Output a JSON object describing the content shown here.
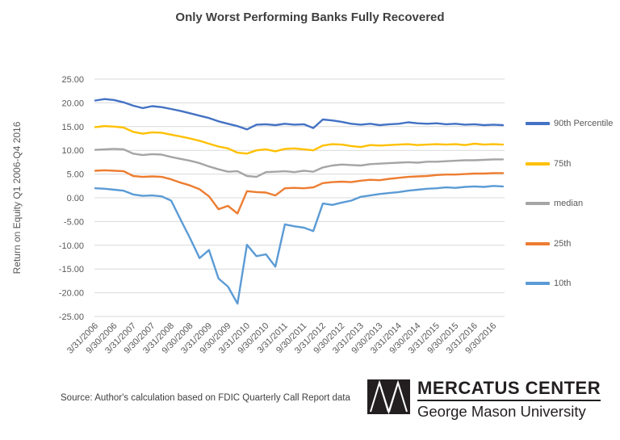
{
  "title": "Only Worst Performing Banks Fully Recovered",
  "source_note": "Source: Author's calculation based on FDIC Quarterly Call Report data",
  "logo": {
    "org": "MERCATUS CENTER",
    "university": "George Mason University"
  },
  "colors": {
    "p90": "#4472C4",
    "p75": "#FFC000",
    "median": "#A5A5A5",
    "p25": "#ED7D31",
    "p10": "#5B9BD5",
    "gridline": "#D9D9D9",
    "tick_text": "#595959",
    "title_text": "#3f3f3f",
    "logo_black": "#231f20"
  },
  "chart_data": {
    "type": "line",
    "title": "Only Worst Performing Banks Fully Recovered",
    "ylabel": "Return on Equity Q1 2006-Q4 2016",
    "xlabel": "",
    "ylim": [
      -25,
      25
    ],
    "y_ticks": [
      25,
      20,
      15,
      10,
      5,
      0,
      -5,
      -10,
      -15,
      -20,
      -25
    ],
    "y_tick_labels": [
      "25.00",
      "20.00",
      "15.00",
      "10.00",
      "5.00",
      "0.00",
      "-5.00",
      "-10.00",
      "-15.00",
      "-20.00",
      "-25.00"
    ],
    "grid": "horizontal",
    "legend_position": "right",
    "x_tick_every": 2,
    "x": [
      "3/31/2006",
      "6/30/2006",
      "9/30/2006",
      "12/31/2006",
      "3/31/2007",
      "6/30/2007",
      "9/30/2007",
      "12/31/2007",
      "3/31/2008",
      "6/30/2008",
      "9/30/2008",
      "12/31/2008",
      "3/31/2009",
      "6/30/2009",
      "9/30/2009",
      "12/31/2009",
      "3/31/2010",
      "6/30/2010",
      "9/30/2010",
      "12/31/2010",
      "3/31/2011",
      "6/30/2011",
      "9/30/2011",
      "12/31/2011",
      "3/31/2012",
      "6/30/2012",
      "9/30/2012",
      "12/31/2012",
      "3/31/2013",
      "6/30/2013",
      "9/30/2013",
      "12/31/2013",
      "3/31/2014",
      "6/30/2014",
      "9/30/2014",
      "12/31/2014",
      "3/31/2015",
      "6/30/2015",
      "9/30/2015",
      "12/31/2015",
      "3/31/2016",
      "6/30/2016",
      "9/30/2016",
      "12/31/2016"
    ],
    "x_tick_labels": [
      "3/31/2006",
      "9/30/2006",
      "3/31/2007",
      "9/30/2007",
      "3/31/2008",
      "9/30/2008",
      "3/31/2009",
      "9/30/2009",
      "3/31/2010",
      "9/30/2010",
      "3/31/2011",
      "9/30/2011",
      "3/31/2012",
      "9/30/2012",
      "3/31/2013",
      "9/30/2013",
      "3/31/2014",
      "9/30/2014",
      "3/31/2015",
      "9/30/2015",
      "3/31/2016",
      "9/30/2016"
    ],
    "series": [
      {
        "name": "90th Percentile",
        "color": "#4472C4",
        "values": [
          20.5,
          20.8,
          20.6,
          20.1,
          19.4,
          18.9,
          19.3,
          19.1,
          18.7,
          18.3,
          17.8,
          17.3,
          16.8,
          16.1,
          15.6,
          15.1,
          14.4,
          15.4,
          15.5,
          15.3,
          15.6,
          15.4,
          15.5,
          14.7,
          16.5,
          16.3,
          16.0,
          15.6,
          15.4,
          15.6,
          15.3,
          15.5,
          15.6,
          15.9,
          15.7,
          15.6,
          15.7,
          15.5,
          15.6,
          15.4,
          15.5,
          15.3,
          15.4,
          15.3
        ]
      },
      {
        "name": "75th",
        "color": "#FFC000",
        "values": [
          14.9,
          15.1,
          15.0,
          14.8,
          13.9,
          13.5,
          13.8,
          13.7,
          13.3,
          12.9,
          12.5,
          12.0,
          11.4,
          10.8,
          10.4,
          9.5,
          9.3,
          10.0,
          10.2,
          9.8,
          10.3,
          10.4,
          10.2,
          10.0,
          11.0,
          11.3,
          11.2,
          10.9,
          10.7,
          11.1,
          11.0,
          11.1,
          11.2,
          11.3,
          11.1,
          11.2,
          11.3,
          11.2,
          11.3,
          11.1,
          11.4,
          11.2,
          11.3,
          11.2
        ]
      },
      {
        "name": "median",
        "color": "#A5A5A5",
        "values": [
          10.1,
          10.2,
          10.3,
          10.2,
          9.3,
          9.0,
          9.2,
          9.1,
          8.6,
          8.2,
          7.8,
          7.3,
          6.6,
          6.0,
          5.5,
          5.6,
          4.6,
          4.4,
          5.4,
          5.5,
          5.6,
          5.4,
          5.7,
          5.5,
          6.4,
          6.8,
          7.0,
          6.9,
          6.8,
          7.1,
          7.2,
          7.3,
          7.4,
          7.5,
          7.4,
          7.6,
          7.6,
          7.7,
          7.8,
          7.9,
          7.9,
          8.0,
          8.1,
          8.1
        ]
      },
      {
        "name": "25th",
        "color": "#ED7D31",
        "values": [
          5.7,
          5.8,
          5.7,
          5.6,
          4.6,
          4.4,
          4.5,
          4.4,
          3.9,
          3.2,
          2.6,
          1.8,
          0.3,
          -2.4,
          -1.7,
          -3.3,
          1.4,
          1.2,
          1.1,
          0.5,
          2.0,
          2.1,
          2.0,
          2.2,
          3.1,
          3.3,
          3.4,
          3.3,
          3.6,
          3.8,
          3.7,
          4.0,
          4.2,
          4.4,
          4.5,
          4.6,
          4.8,
          4.9,
          4.9,
          5.0,
          5.1,
          5.1,
          5.2,
          5.2
        ]
      },
      {
        "name": "10th",
        "color": "#5B9BD5",
        "values": [
          2.0,
          1.9,
          1.7,
          1.5,
          0.7,
          0.4,
          0.5,
          0.3,
          -0.6,
          -4.6,
          -8.5,
          -12.7,
          -11.0,
          -17.0,
          -18.7,
          -22.3,
          -9.9,
          -12.3,
          -11.9,
          -14.5,
          -5.6,
          -6.0,
          -6.3,
          -7.0,
          -1.2,
          -1.5,
          -1.0,
          -0.6,
          0.2,
          0.5,
          0.8,
          1.0,
          1.2,
          1.5,
          1.7,
          1.9,
          2.0,
          2.2,
          2.1,
          2.3,
          2.4,
          2.3,
          2.5,
          2.4
        ]
      }
    ]
  }
}
